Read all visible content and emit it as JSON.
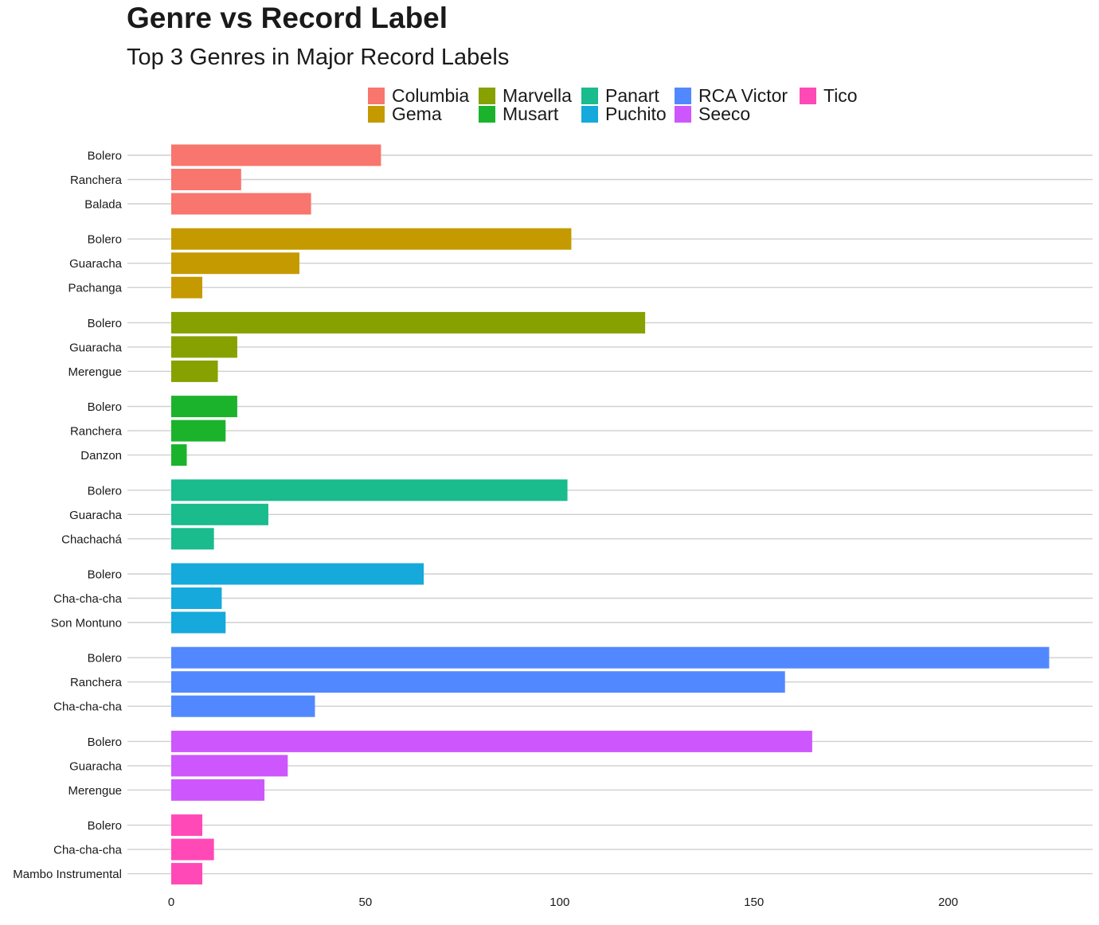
{
  "chart_data": {
    "type": "bar",
    "orientation": "horizontal",
    "title": "Genre vs Record Label",
    "subtitle": "Top 3 Genres in Major Record Labels",
    "xlabel": "",
    "ylabel": "",
    "xlim": [
      0,
      230
    ],
    "x_ticks": [
      0,
      50,
      100,
      150,
      200
    ],
    "grid": "horizontal",
    "legend_position": "top",
    "series": [
      {
        "name": "Columbia",
        "color": "#F8766D",
        "categories": [
          "Bolero",
          "Ranchera",
          "Balada"
        ],
        "values": [
          54,
          18,
          36
        ]
      },
      {
        "name": "Gema",
        "color": "#C49A00",
        "categories": [
          "Bolero",
          "Guaracha",
          "Pachanga"
        ],
        "values": [
          103,
          33,
          8
        ]
      },
      {
        "name": "Marvella",
        "color": "#86A100",
        "categories": [
          "Bolero",
          "Guaracha",
          "Merengue"
        ],
        "values": [
          122,
          17,
          12
        ]
      },
      {
        "name": "Musart",
        "color": "#1BB32C",
        "categories": [
          "Bolero",
          "Ranchera",
          "Danzon"
        ],
        "values": [
          17,
          14,
          4
        ]
      },
      {
        "name": "Panart",
        "color": "#1ABB8D",
        "categories": [
          "Bolero",
          "Guaracha",
          "Chachachá"
        ],
        "values": [
          102,
          25,
          11
        ]
      },
      {
        "name": "Puchito",
        "color": "#15A9DC",
        "categories": [
          "Bolero",
          "Cha-cha-cha",
          "Son Montuno"
        ],
        "values": [
          65,
          13,
          14
        ]
      },
      {
        "name": "RCA Victor",
        "color": "#5288FF",
        "categories": [
          "Bolero",
          "Ranchera",
          "Cha-cha-cha"
        ],
        "values": [
          226,
          158,
          37
        ]
      },
      {
        "name": "Seeco",
        "color": "#CD57FC",
        "categories": [
          "Bolero",
          "Guaracha",
          "Merengue"
        ],
        "values": [
          165,
          30,
          24
        ]
      },
      {
        "name": "Tico",
        "color": "#FF49B6",
        "categories": [
          "Bolero",
          "Cha-cha-cha",
          "Mambo Instrumental"
        ],
        "values": [
          8,
          11,
          8
        ]
      }
    ]
  }
}
